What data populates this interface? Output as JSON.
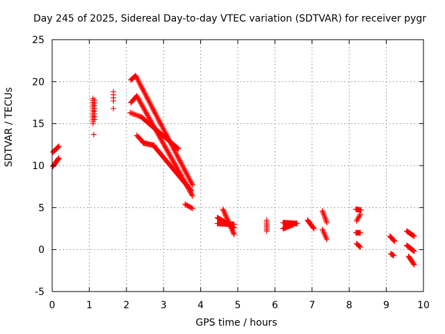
{
  "chart_data": {
    "type": "scatter",
    "title": "Day 245 of 2025, Sidereal Day-to-day VTEC variation (SDTVAR) for receiver pygr",
    "xlabel": "GPS time / hours",
    "ylabel": "SDTVAR / TECUs",
    "xlim": [
      0,
      10
    ],
    "ylim": [
      -5,
      25
    ],
    "xticks": [
      "0",
      "1",
      "2",
      "3",
      "4",
      "5",
      "6",
      "7",
      "8",
      "9",
      "10"
    ],
    "yticks": [
      "-5",
      "0",
      "5",
      "10",
      "15",
      "20",
      "25"
    ],
    "grid": true,
    "marker": "plus",
    "color": "#ff0000",
    "segments": [
      {
        "x0": 0.02,
        "x1": 0.18,
        "y0": 9.9,
        "y1": 10.9,
        "n": 14
      },
      {
        "x0": 0.02,
        "x1": 0.18,
        "y0": 11.6,
        "y1": 12.3,
        "n": 10
      },
      {
        "x0": 1.1,
        "x1": 1.1,
        "y0": 15.0,
        "y1": 18.0,
        "n": 14
      },
      {
        "x0": 1.14,
        "x1": 1.14,
        "y0": 15.5,
        "y1": 17.8,
        "n": 8
      },
      {
        "x0": 1.12,
        "x1": 1.12,
        "y0": 13.7,
        "y1": 13.7,
        "n": 1
      },
      {
        "x0": 1.65,
        "x1": 1.65,
        "y0": 17.7,
        "y1": 18.8,
        "n": 4
      },
      {
        "x0": 1.65,
        "x1": 1.65,
        "y0": 16.8,
        "y1": 16.8,
        "n": 1
      },
      {
        "x0": 2.12,
        "x1": 2.25,
        "y0": 20.2,
        "y1": 20.7,
        "n": 8
      },
      {
        "x0": 2.25,
        "x1": 3.78,
        "y0": 20.7,
        "y1": 7.7,
        "n": 90
      },
      {
        "x0": 2.12,
        "x1": 2.28,
        "y0": 17.5,
        "y1": 18.3,
        "n": 8
      },
      {
        "x0": 2.28,
        "x1": 3.78,
        "y0": 18.3,
        "y1": 6.4,
        "n": 85
      },
      {
        "x0": 2.1,
        "x1": 2.4,
        "y0": 16.3,
        "y1": 15.8,
        "n": 10
      },
      {
        "x0": 2.4,
        "x1": 3.4,
        "y0": 15.8,
        "y1": 12.0,
        "n": 60
      },
      {
        "x0": 2.28,
        "x1": 2.45,
        "y0": 13.6,
        "y1": 12.8,
        "n": 8
      },
      {
        "x0": 2.45,
        "x1": 2.75,
        "y0": 12.7,
        "y1": 12.4,
        "n": 14
      },
      {
        "x0": 2.75,
        "x1": 3.75,
        "y0": 12.3,
        "y1": 7.0,
        "n": 60
      },
      {
        "x0": 3.58,
        "x1": 3.78,
        "y0": 5.4,
        "y1": 4.9,
        "n": 8
      },
      {
        "x0": 4.45,
        "x1": 4.9,
        "y0": 3.8,
        "y1": 2.6,
        "n": 28
      },
      {
        "x0": 4.45,
        "x1": 4.9,
        "y0": 3.1,
        "y1": 3.0,
        "n": 22
      },
      {
        "x0": 4.6,
        "x1": 4.9,
        "y0": 4.8,
        "y1": 1.8,
        "n": 22
      },
      {
        "x0": 5.78,
        "x1": 5.78,
        "y0": 2.2,
        "y1": 3.5,
        "n": 8
      },
      {
        "x0": 6.22,
        "x1": 6.6,
        "y0": 3.2,
        "y1": 3.1,
        "n": 24
      },
      {
        "x0": 6.22,
        "x1": 6.5,
        "y0": 2.5,
        "y1": 3.0,
        "n": 18
      },
      {
        "x0": 6.88,
        "x1": 7.05,
        "y0": 3.5,
        "y1": 2.5,
        "n": 12
      },
      {
        "x0": 7.28,
        "x1": 7.4,
        "y0": 4.6,
        "y1": 3.2,
        "n": 10
      },
      {
        "x0": 7.28,
        "x1": 7.4,
        "y0": 2.4,
        "y1": 1.2,
        "n": 8
      },
      {
        "x0": 8.18,
        "x1": 8.32,
        "y0": 4.8,
        "y1": 4.7,
        "n": 8
      },
      {
        "x0": 8.2,
        "x1": 8.3,
        "y0": 3.4,
        "y1": 4.2,
        "n": 6
      },
      {
        "x0": 8.18,
        "x1": 8.3,
        "y0": 2.0,
        "y1": 2.0,
        "n": 8
      },
      {
        "x0": 8.2,
        "x1": 8.3,
        "y0": 0.7,
        "y1": 0.3,
        "n": 6
      },
      {
        "x0": 9.1,
        "x1": 9.22,
        "y0": 1.6,
        "y1": 1.0,
        "n": 10
      },
      {
        "x0": 9.12,
        "x1": 9.2,
        "y0": -0.5,
        "y1": -0.7,
        "n": 6
      },
      {
        "x0": 9.55,
        "x1": 9.75,
        "y0": 2.2,
        "y1": 1.6,
        "n": 12
      },
      {
        "x0": 9.55,
        "x1": 9.75,
        "y0": 0.5,
        "y1": -0.2,
        "n": 14
      },
      {
        "x0": 9.6,
        "x1": 9.75,
        "y0": -0.8,
        "y1": -1.8,
        "n": 10
      }
    ]
  }
}
